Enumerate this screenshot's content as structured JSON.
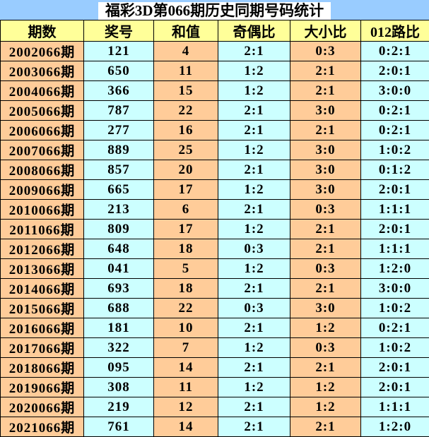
{
  "title_bar": {
    "title": "福彩3D第066期历史同期号码统计"
  },
  "colors": {
    "title_bar_bg": "#99CCFF",
    "title_box_bg": "#FFFFFF",
    "header_bg": "#FFFF99",
    "odd_column_bg": "#FFCC99",
    "even_column_bg": "#CCFFFF",
    "border": "#000000",
    "text": "#000000"
  },
  "chart_data": {
    "type": "table",
    "title": "福彩3D第066期历史同期号码统计",
    "columns": [
      "期数",
      "奖号",
      "和值",
      "奇偶比",
      "大小比",
      "012路比"
    ],
    "rows": [
      [
        "2002066期",
        "121",
        "4",
        "2:1",
        "0:3",
        "0:2:1"
      ],
      [
        "2003066期",
        "650",
        "11",
        "1:2",
        "2:1",
        "2:0:1"
      ],
      [
        "2004066期",
        "366",
        "15",
        "1:2",
        "2:1",
        "3:0:0"
      ],
      [
        "2005066期",
        "787",
        "22",
        "2:1",
        "3:0",
        "0:2:1"
      ],
      [
        "2006066期",
        "277",
        "16",
        "2:1",
        "2:1",
        "0:2:1"
      ],
      [
        "2007066期",
        "889",
        "25",
        "1:2",
        "3:0",
        "1:0:2"
      ],
      [
        "2008066期",
        "857",
        "20",
        "2:1",
        "3:0",
        "0:1:2"
      ],
      [
        "2009066期",
        "665",
        "17",
        "1:2",
        "3:0",
        "2:0:1"
      ],
      [
        "2010066期",
        "213",
        "6",
        "2:1",
        "0:3",
        "1:1:1"
      ],
      [
        "2011066期",
        "809",
        "17",
        "1:2",
        "2:1",
        "2:0:1"
      ],
      [
        "2012066期",
        "648",
        "18",
        "0:3",
        "2:1",
        "1:1:1"
      ],
      [
        "2013066期",
        "041",
        "5",
        "1:2",
        "0:3",
        "1:2:0"
      ],
      [
        "2014066期",
        "693",
        "18",
        "2:1",
        "2:1",
        "3:0:0"
      ],
      [
        "2015066期",
        "688",
        "22",
        "0:3",
        "3:0",
        "1:0:2"
      ],
      [
        "2016066期",
        "181",
        "10",
        "2:1",
        "1:2",
        "0:2:1"
      ],
      [
        "2017066期",
        "322",
        "7",
        "1:2",
        "0:3",
        "1:0:2"
      ],
      [
        "2018066期",
        "095",
        "14",
        "2:1",
        "2:1",
        "2:0:1"
      ],
      [
        "2019066期",
        "308",
        "11",
        "1:2",
        "1:2",
        "2:0:1"
      ],
      [
        "2020066期",
        "219",
        "12",
        "2:1",
        "1:2",
        "1:1:1"
      ],
      [
        "2021066期",
        "761",
        "14",
        "2:1",
        "2:1",
        "1:2:0"
      ]
    ]
  }
}
